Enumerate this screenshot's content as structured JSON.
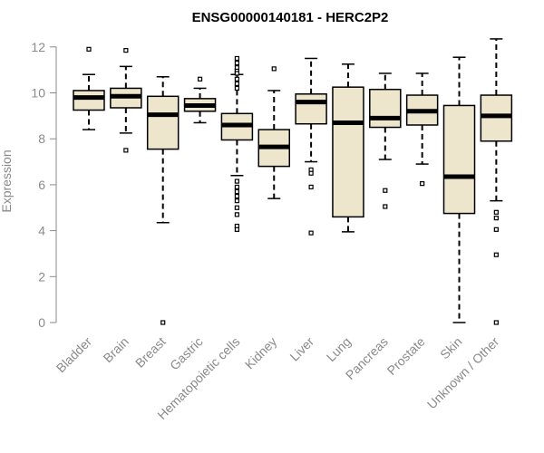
{
  "chart_data": {
    "type": "boxplot",
    "title": "ENSG00000140181 - HERC2P2",
    "xlabel": "",
    "ylabel": "Expression",
    "ylim": [
      0,
      12
    ],
    "yticks": [
      0,
      2,
      4,
      6,
      8,
      10,
      12
    ],
    "box_color": "#ede6cc",
    "categories": [
      "Bladder",
      "Brain",
      "Breast",
      "Gastric",
      "Hematopoietic cells",
      "Kidney",
      "Liver",
      "Lung",
      "Pancreas",
      "Prostate",
      "Skin",
      "Unknown / Other"
    ],
    "boxes": [
      {
        "name": "Bladder",
        "whisker_low": 8.4,
        "q1": 9.25,
        "median": 9.8,
        "q3": 10.1,
        "whisker_high": 10.8,
        "outliers": [
          11.9
        ]
      },
      {
        "name": "Brain",
        "whisker_low": 8.25,
        "q1": 9.35,
        "median": 9.85,
        "q3": 10.2,
        "whisker_high": 11.15,
        "outliers": [
          11.85,
          7.5
        ]
      },
      {
        "name": "Breast",
        "whisker_low": 4.35,
        "q1": 7.55,
        "median": 9.05,
        "q3": 9.85,
        "whisker_high": 10.7,
        "outliers": [
          0.0
        ]
      },
      {
        "name": "Gastric",
        "whisker_low": 8.7,
        "q1": 9.2,
        "median": 9.45,
        "q3": 9.75,
        "whisker_high": 10.2,
        "outliers": [
          10.6
        ]
      },
      {
        "name": "Hematopoietic cells",
        "whisker_low": 6.4,
        "q1": 7.95,
        "median": 8.6,
        "q3": 9.1,
        "whisker_high": 10.8,
        "outliers": [
          11.5,
          11.3,
          11.1,
          10.95,
          10.85,
          10.6,
          10.4,
          10.2,
          6.15,
          5.9,
          5.7,
          5.5,
          5.3,
          5.0,
          4.7,
          4.2,
          4.05
        ]
      },
      {
        "name": "Kidney",
        "whisker_low": 5.4,
        "q1": 6.8,
        "median": 7.65,
        "q3": 8.4,
        "whisker_high": 10.1,
        "outliers": [
          11.05
        ]
      },
      {
        "name": "Liver",
        "whisker_low": 7.0,
        "q1": 8.65,
        "median": 9.6,
        "q3": 9.95,
        "whisker_high": 11.5,
        "outliers": [
          6.65,
          6.5,
          5.9,
          3.9
        ]
      },
      {
        "name": "Lung",
        "whisker_low": 3.95,
        "q1": 4.6,
        "median": 8.7,
        "q3": 10.25,
        "whisker_high": 11.25,
        "outliers": []
      },
      {
        "name": "Pancreas",
        "whisker_low": 7.1,
        "q1": 8.5,
        "median": 8.9,
        "q3": 10.15,
        "whisker_high": 10.85,
        "outliers": [
          5.75,
          5.05
        ]
      },
      {
        "name": "Prostate",
        "whisker_low": 6.9,
        "q1": 8.6,
        "median": 9.2,
        "q3": 9.9,
        "whisker_high": 10.85,
        "outliers": [
          6.05
        ]
      },
      {
        "name": "Skin",
        "whisker_low": 0.0,
        "q1": 4.75,
        "median": 6.35,
        "q3": 9.45,
        "whisker_high": 11.55,
        "outliers": []
      },
      {
        "name": "Unknown / Other",
        "whisker_low": 5.3,
        "q1": 7.9,
        "median": 9.0,
        "q3": 9.9,
        "whisker_high": 12.35,
        "outliers": [
          4.8,
          4.55,
          4.05,
          2.95,
          0.0
        ]
      }
    ]
  }
}
